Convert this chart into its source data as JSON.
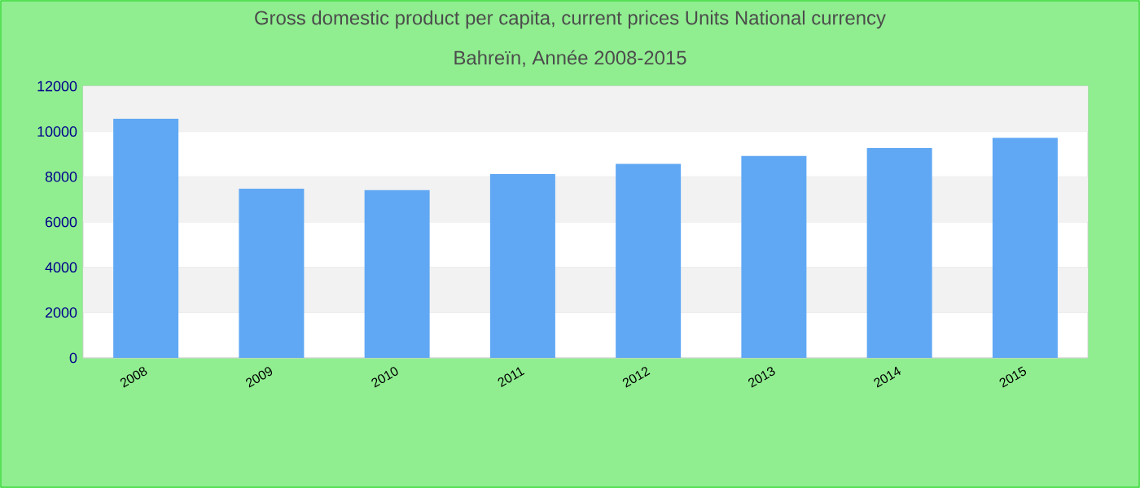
{
  "chart_data": {
    "type": "bar",
    "title": "Gross domestic product per capita, current prices Units National currency",
    "subtitle": "Bahreïn, Année 2008-2015",
    "categories": [
      "2008",
      "2009",
      "2010",
      "2011",
      "2012",
      "2013",
      "2014",
      "2015"
    ],
    "values": [
      10560,
      7470,
      7410,
      8120,
      8570,
      8920,
      9270,
      9720
    ],
    "color": "#60a8f4",
    "ylim": [
      0,
      12000
    ],
    "yticks": [
      0,
      2000,
      4000,
      6000,
      8000,
      10000,
      12000
    ],
    "grid": "y"
  }
}
